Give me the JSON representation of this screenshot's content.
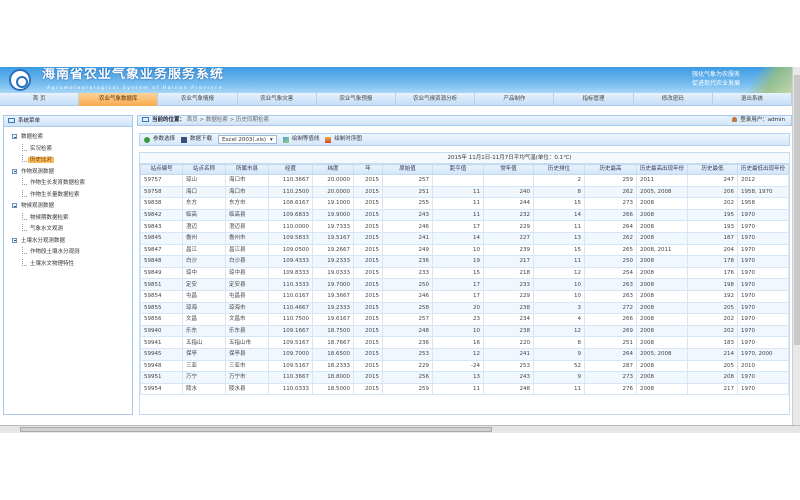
{
  "header": {
    "title": "海南省农业气象业务服务系统",
    "subtitle": "Agrometeorological System of Hainan Province",
    "slogan": [
      "强化气象为农服务",
      "促进现代农业发展"
    ]
  },
  "nav": [
    {
      "label": "首 页"
    },
    {
      "label": "农业气象数据库",
      "active": true
    },
    {
      "label": "农业气象情报"
    },
    {
      "label": "农业气象灾害"
    },
    {
      "label": "农业气象预报"
    },
    {
      "label": "农业气候资源分析"
    },
    {
      "label": "产品制作"
    },
    {
      "label": "指标管理"
    },
    {
      "label": "修改密码"
    },
    {
      "label": "退出系统"
    }
  ],
  "sidebar": {
    "title": "系统菜单",
    "groups": [
      {
        "label": "数据检索",
        "items": [
          {
            "label": "实况检索"
          },
          {
            "label": "历史比对",
            "selected": true
          }
        ]
      },
      {
        "label": "作物观测数据",
        "items": [
          {
            "label": "作物生长发育数据检索"
          },
          {
            "label": "作物生长量数据检索"
          }
        ]
      },
      {
        "label": "物候观测数据",
        "items": [
          {
            "label": "物候期数据检索"
          },
          {
            "label": "气象水文观测"
          }
        ]
      },
      {
        "label": "土壤水分观测数据",
        "items": [
          {
            "label": "作物段土壤水分观测"
          },
          {
            "label": "土壤水文物理特性"
          }
        ]
      }
    ]
  },
  "breadcrumb": {
    "label": "当前的位置：",
    "path": "首页 > 数据检索 > 历史同期检索",
    "user": "登录用户：admin"
  },
  "toolbar": {
    "params": "参数选择",
    "download": "数据下载",
    "format": "Excel 2003(.xls)",
    "contour": "绘制等值线",
    "timeseries": "绘制时序图"
  },
  "table": {
    "caption": "2015年 11月1日-11月7日平均气温(单位：0.1℃)",
    "columns": [
      "站点编号",
      "站点名称",
      "所属市县",
      "经度",
      "纬度",
      "年",
      "原始值",
      "距平值",
      "常年值",
      "历史排位",
      "历史最高",
      "历史最高出现年份",
      "历史最低",
      "历史最低出现年份"
    ],
    "rows": [
      [
        "59757",
        "琼山",
        "海口市",
        "110.3667",
        "20.0000",
        "2015",
        "257",
        "",
        "",
        "2",
        "259",
        "2011",
        "247",
        "2012"
      ],
      [
        "59758",
        "海口",
        "海口市",
        "110.2500",
        "20.0000",
        "2015",
        "251",
        "11",
        "240",
        "8",
        "262",
        "2005, 2008",
        "206",
        "1958, 1970"
      ],
      [
        "59838",
        "东方",
        "东方市",
        "108.6167",
        "19.1000",
        "2015",
        "255",
        "11",
        "244",
        "15",
        "273",
        "2008",
        "202",
        "1958"
      ],
      [
        "59842",
        "临高",
        "临高县",
        "109.6833",
        "19.9000",
        "2015",
        "243",
        "11",
        "232",
        "14",
        "266",
        "2008",
        "195",
        "1970"
      ],
      [
        "59843",
        "澄迈",
        "澄迈县",
        "110.0000",
        "19.7333",
        "2015",
        "246",
        "17",
        "229",
        "11",
        "264",
        "2008",
        "193",
        "1970"
      ],
      [
        "59845",
        "儋州",
        "儋州市",
        "109.5833",
        "19.5167",
        "2015",
        "241",
        "14",
        "227",
        "13",
        "262",
        "2008",
        "187",
        "1970"
      ],
      [
        "59847",
        "昌江",
        "昌江县",
        "109.0500",
        "19.2667",
        "2015",
        "249",
        "10",
        "239",
        "15",
        "265",
        "2008, 2011",
        "204",
        "1970"
      ],
      [
        "59848",
        "白沙",
        "白沙县",
        "109.4333",
        "19.2333",
        "2015",
        "236",
        "19",
        "217",
        "11",
        "250",
        "2008",
        "178",
        "1970"
      ],
      [
        "59849",
        "琼中",
        "琼中县",
        "109.8333",
        "19.0333",
        "2015",
        "233",
        "15",
        "218",
        "12",
        "254",
        "2008",
        "176",
        "1970"
      ],
      [
        "59851",
        "定安",
        "定安县",
        "110.3333",
        "19.7000",
        "2015",
        "250",
        "17",
        "233",
        "10",
        "263",
        "2008",
        "198",
        "1970"
      ],
      [
        "59854",
        "屯昌",
        "屯昌县",
        "110.0167",
        "19.3667",
        "2015",
        "246",
        "17",
        "229",
        "10",
        "263",
        "2008",
        "192",
        "1970"
      ],
      [
        "59855",
        "琼海",
        "琼海市",
        "110.4667",
        "19.2333",
        "2015",
        "258",
        "20",
        "238",
        "3",
        "272",
        "2008",
        "205",
        "1970"
      ],
      [
        "59856",
        "文昌",
        "文昌市",
        "110.7500",
        "19.6167",
        "2015",
        "257",
        "23",
        "234",
        "4",
        "266",
        "2008",
        "202",
        "1970"
      ],
      [
        "59940",
        "乐东",
        "乐东县",
        "109.1667",
        "18.7500",
        "2015",
        "248",
        "10",
        "238",
        "12",
        "269",
        "2008",
        "202",
        "1970"
      ],
      [
        "59941",
        "五指山",
        "五指山市",
        "109.5167",
        "18.7667",
        "2015",
        "236",
        "16",
        "220",
        "8",
        "251",
        "2008",
        "183",
        "1970"
      ],
      [
        "59945",
        "保亭",
        "保亭县",
        "109.7000",
        "18.6500",
        "2015",
        "253",
        "12",
        "241",
        "9",
        "264",
        "2005, 2008",
        "214",
        "1970, 2000"
      ],
      [
        "59948",
        "三亚",
        "三亚市",
        "109.5167",
        "18.2333",
        "2015",
        "229",
        "-24",
        "253",
        "52",
        "287",
        "2008",
        "205",
        "2010"
      ],
      [
        "59951",
        "万宁",
        "万宁市",
        "110.3667",
        "18.8000",
        "2015",
        "256",
        "13",
        "243",
        "9",
        "273",
        "2008",
        "208",
        "1970"
      ],
      [
        "59954",
        "陵水",
        "陵水县",
        "110.0333",
        "18.5000",
        "2015",
        "259",
        "11",
        "248",
        "11",
        "276",
        "2008",
        "217",
        "1970"
      ]
    ]
  }
}
